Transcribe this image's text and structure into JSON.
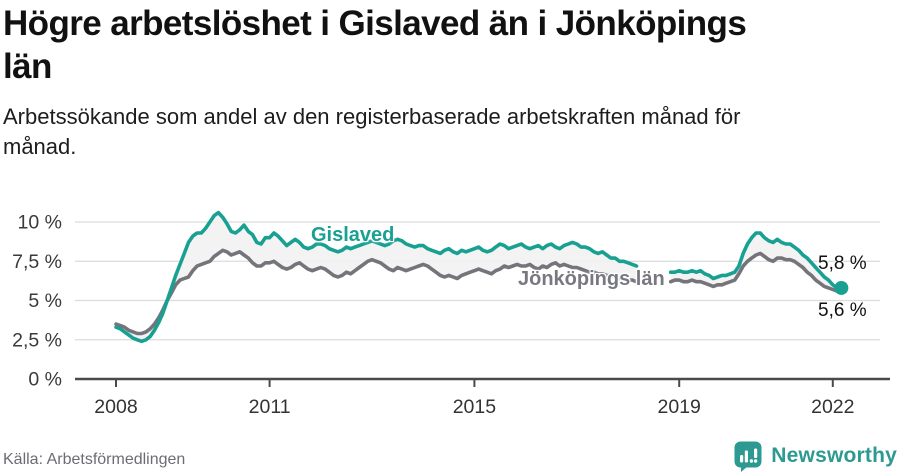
{
  "header": {
    "title_lines": [
      "Högre arbetslöshet i Gislaved än i Jönköpings",
      "län"
    ],
    "subtitle_lines": [
      "Arbetssökande som andel av den registerbaserade arbetskraften månad för",
      "månad."
    ]
  },
  "chart_data": {
    "type": "line",
    "title": "Högre arbetslöshet i Gislaved än i Jönköpings län",
    "subtitle": "Arbetssökande som andel av den registerbaserade arbetskraften månad för månad.",
    "x_unit": "month",
    "x_start": "2008-01",
    "x_end": "2022-03",
    "data_gap_visible": "2018-04 to 2018-10",
    "ylim": [
      0,
      11
    ],
    "grid": "horizontal",
    "legend_position": "inline-labels",
    "between_fill": "#f2f2f2",
    "y_ticks": [
      {
        "value": 0,
        "label": "0 %"
      },
      {
        "value": 2.5,
        "label": "2,5 %"
      },
      {
        "value": 5,
        "label": "5 %"
      },
      {
        "value": 7.5,
        "label": "7,5 %"
      },
      {
        "value": 10,
        "label": "10 %"
      }
    ],
    "x_ticks": [
      {
        "year": 2008,
        "label": "2008"
      },
      {
        "year": 2011,
        "label": "2011"
      },
      {
        "year": 2015,
        "label": "2015"
      },
      {
        "year": 2019,
        "label": "2019"
      },
      {
        "year": 2022,
        "label": "2022"
      }
    ],
    "series": [
      {
        "name": "Gislaved",
        "color": "#18a192",
        "end_label": "5,8 %",
        "end_value": 5.8,
        "values": [
          3.3,
          3.2,
          3.0,
          2.8,
          2.6,
          2.5,
          2.4,
          2.5,
          2.7,
          3.1,
          3.6,
          4.2,
          5.0,
          5.8,
          6.6,
          7.3,
          8.0,
          8.7,
          9.1,
          9.3,
          9.3,
          9.6,
          10.0,
          10.4,
          10.6,
          10.3,
          9.9,
          9.4,
          9.3,
          9.5,
          9.8,
          9.4,
          9.2,
          8.7,
          8.6,
          9.0,
          9.0,
          9.3,
          9.1,
          8.8,
          8.5,
          8.7,
          8.9,
          8.7,
          8.4,
          8.3,
          8.4,
          8.6,
          8.6,
          8.5,
          8.3,
          8.2,
          8.1,
          8.2,
          8.4,
          8.3,
          8.4,
          8.5,
          8.6,
          8.7,
          8.8,
          8.7,
          8.6,
          8.5,
          8.6,
          8.8,
          8.9,
          8.8,
          8.6,
          8.5,
          8.4,
          8.5,
          8.5,
          8.3,
          8.2,
          8.1,
          8.0,
          8.2,
          8.3,
          8.1,
          8.0,
          8.2,
          8.1,
          8.2,
          8.3,
          8.4,
          8.2,
          8.1,
          8.2,
          8.4,
          8.6,
          8.5,
          8.3,
          8.4,
          8.5,
          8.6,
          8.4,
          8.3,
          8.4,
          8.5,
          8.3,
          8.5,
          8.6,
          8.4,
          8.3,
          8.5,
          8.6,
          8.7,
          8.6,
          8.4,
          8.4,
          8.3,
          8.1,
          8.0,
          8.1,
          7.9,
          7.7,
          7.7,
          7.5,
          7.5,
          7.4,
          7.3,
          7.2,
          null,
          null,
          null,
          null,
          null,
          null,
          null,
          6.8,
          6.8,
          6.9,
          6.8,
          6.8,
          6.9,
          6.8,
          6.9,
          6.7,
          6.6,
          6.4,
          6.5,
          6.6,
          6.6,
          6.7,
          6.8,
          7.2,
          8.0,
          8.6,
          9.0,
          9.3,
          9.3,
          9.0,
          8.8,
          8.7,
          8.9,
          8.7,
          8.6,
          8.6,
          8.4,
          8.2,
          7.9,
          7.7,
          7.4,
          7.1,
          6.8,
          6.5,
          6.3,
          6.0,
          5.8,
          5.8
        ]
      },
      {
        "name": "Jönköpings län",
        "color": "#74747a",
        "end_label": "5,6 %",
        "end_value": 5.6,
        "values": [
          3.5,
          3.4,
          3.3,
          3.1,
          3.0,
          2.9,
          2.9,
          3.0,
          3.2,
          3.5,
          3.9,
          4.4,
          5.0,
          5.5,
          6.0,
          6.3,
          6.4,
          6.5,
          6.9,
          7.2,
          7.3,
          7.4,
          7.5,
          7.8,
          8.0,
          8.2,
          8.1,
          7.9,
          8.0,
          8.1,
          7.9,
          7.7,
          7.4,
          7.2,
          7.2,
          7.4,
          7.4,
          7.5,
          7.3,
          7.1,
          7.0,
          7.1,
          7.3,
          7.4,
          7.2,
          7.0,
          6.9,
          7.0,
          7.1,
          7.0,
          6.8,
          6.6,
          6.5,
          6.6,
          6.8,
          6.7,
          6.9,
          7.1,
          7.3,
          7.5,
          7.6,
          7.5,
          7.4,
          7.2,
          7.0,
          6.9,
          7.1,
          7.0,
          6.9,
          7.0,
          7.1,
          7.2,
          7.3,
          7.2,
          7.0,
          6.8,
          6.6,
          6.5,
          6.6,
          6.5,
          6.4,
          6.6,
          6.7,
          6.8,
          6.9,
          7.0,
          6.9,
          6.8,
          6.7,
          6.9,
          7.0,
          7.2,
          7.1,
          7.2,
          7.3,
          7.2,
          7.2,
          7.3,
          7.1,
          7.0,
          7.2,
          7.1,
          7.3,
          7.4,
          7.2,
          7.3,
          7.2,
          7.1,
          7.1,
          7.0,
          6.9,
          6.8,
          6.8,
          6.7,
          6.7,
          6.6,
          6.6,
          6.5,
          6.4,
          6.4,
          6.3,
          6.3,
          6.2,
          null,
          null,
          null,
          null,
          null,
          null,
          null,
          6.2,
          6.3,
          6.3,
          6.2,
          6.2,
          6.3,
          6.2,
          6.2,
          6.1,
          6.0,
          5.9,
          6.0,
          6.0,
          6.1,
          6.2,
          6.3,
          6.7,
          7.2,
          7.5,
          7.7,
          7.9,
          8.0,
          7.8,
          7.6,
          7.5,
          7.7,
          7.7,
          7.6,
          7.6,
          7.5,
          7.3,
          7.1,
          6.8,
          6.6,
          6.3,
          6.1,
          5.9,
          5.8,
          5.7,
          5.6,
          5.6
        ]
      }
    ]
  },
  "footer": {
    "source": "Källa: Arbetsförmedlingen",
    "brand": "Newsworthy"
  }
}
